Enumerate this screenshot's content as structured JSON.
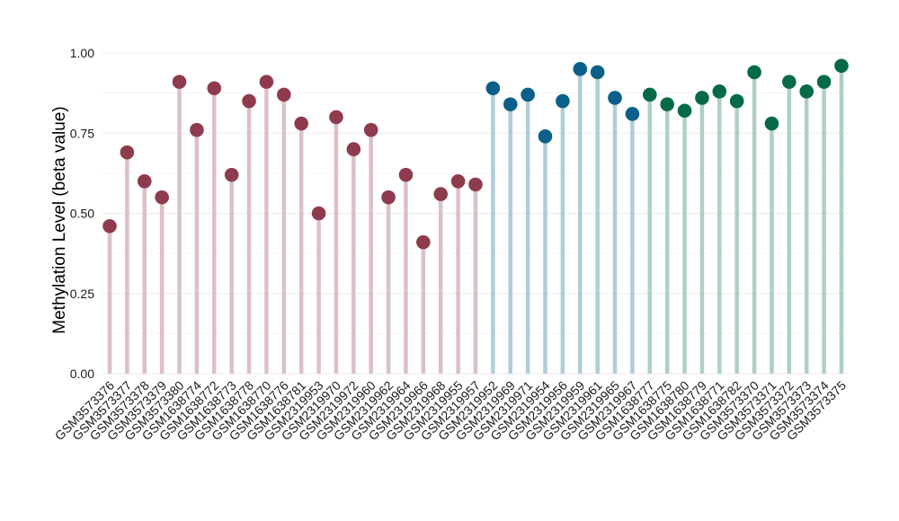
{
  "chart_data": {
    "type": "lollipop",
    "title": "",
    "xlabel": "",
    "ylabel": "Methylation Level (beta value)",
    "ylim": [
      0,
      1
    ],
    "yticks": [
      "0.00",
      "0.25",
      "0.50",
      "0.75",
      "1.00"
    ],
    "ytick_values": [
      0,
      0.25,
      0.5,
      0.75,
      1.0
    ],
    "grid": true,
    "legend": "none",
    "colors": {
      "group1": "#8f3b4e",
      "group2": "#0b5f89",
      "group3": "#066a47"
    },
    "categories": [
      "GSM3573376",
      "GSM3573377",
      "GSM3573378",
      "GSM3573379",
      "GSM3573380",
      "GSM1638774",
      "GSM1638772",
      "GSM1638773",
      "GSM1638778",
      "GSM1638770",
      "GSM1638776",
      "GSM1638781",
      "GSM2319953",
      "GSM2319970",
      "GSM2319972",
      "GSM2319960",
      "GSM2319962",
      "GSM2319964",
      "GSM2319966",
      "GSM2319968",
      "GSM2319955",
      "GSM2319957",
      "GSM2319952",
      "GSM2319969",
      "GSM2319971",
      "GSM2319954",
      "GSM2319956",
      "GSM2319959",
      "GSM2319961",
      "GSM2319965",
      "GSM2319967",
      "GSM1638777",
      "GSM1638775",
      "GSM1638780",
      "GSM1638779",
      "GSM1638771",
      "GSM1638782",
      "GSM3573370",
      "GSM3573371",
      "GSM3573372",
      "GSM3573373",
      "GSM3573374",
      "GSM3573375"
    ],
    "values": [
      0.46,
      0.69,
      0.6,
      0.55,
      0.91,
      0.76,
      0.89,
      0.62,
      0.85,
      0.91,
      0.87,
      0.78,
      0.5,
      0.8,
      0.7,
      0.76,
      0.55,
      0.62,
      0.41,
      0.56,
      0.6,
      0.59,
      0.89,
      0.84,
      0.87,
      0.74,
      0.85,
      0.95,
      0.94,
      0.86,
      0.81,
      0.87,
      0.84,
      0.82,
      0.86,
      0.88,
      0.85,
      0.94,
      0.78,
      0.91,
      0.88,
      0.91,
      0.96
    ],
    "groups": [
      "group1",
      "group1",
      "group1",
      "group1",
      "group1",
      "group1",
      "group1",
      "group1",
      "group1",
      "group1",
      "group1",
      "group1",
      "group1",
      "group1",
      "group1",
      "group1",
      "group1",
      "group1",
      "group1",
      "group1",
      "group1",
      "group1",
      "group2",
      "group2",
      "group2",
      "group2",
      "group2",
      "group2",
      "group2",
      "group2",
      "group2",
      "group3",
      "group3",
      "group3",
      "group3",
      "group3",
      "group3",
      "group3",
      "group3",
      "group3",
      "group3",
      "group3",
      "group3"
    ]
  }
}
